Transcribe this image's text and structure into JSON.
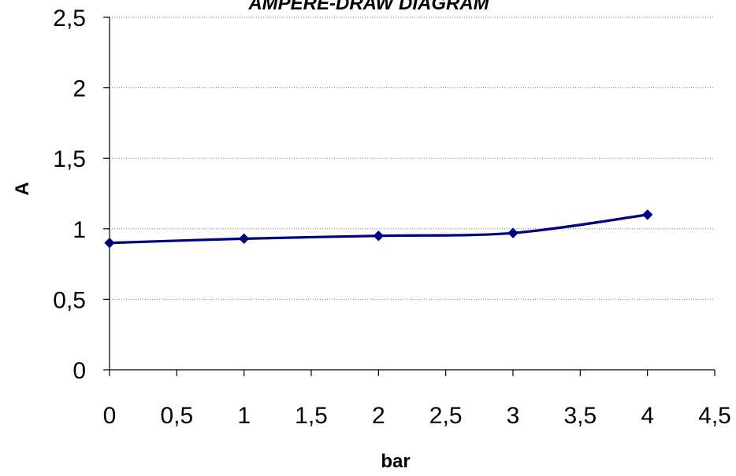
{
  "chart_data": {
    "type": "line",
    "title": "AMPERE-DRAW DIAGRAM",
    "xlabel": "bar",
    "ylabel": "A",
    "xlim": [
      0,
      4.5
    ],
    "ylim": [
      0,
      2.5
    ],
    "x_ticks": [
      "0",
      "0,5",
      "1",
      "1,5",
      "2",
      "2,5",
      "3",
      "3,5",
      "4",
      "4,5"
    ],
    "y_ticks": [
      "0",
      "0,5",
      "1",
      "1,5",
      "2",
      "2,5"
    ],
    "grid": "horizontal dotted",
    "series": [
      {
        "color": "#000080",
        "marker": "diamond",
        "smooth": true,
        "x": [
          0,
          1,
          2,
          3,
          4
        ],
        "y": [
          0.9,
          0.93,
          0.95,
          0.97,
          1.1
        ]
      }
    ]
  }
}
